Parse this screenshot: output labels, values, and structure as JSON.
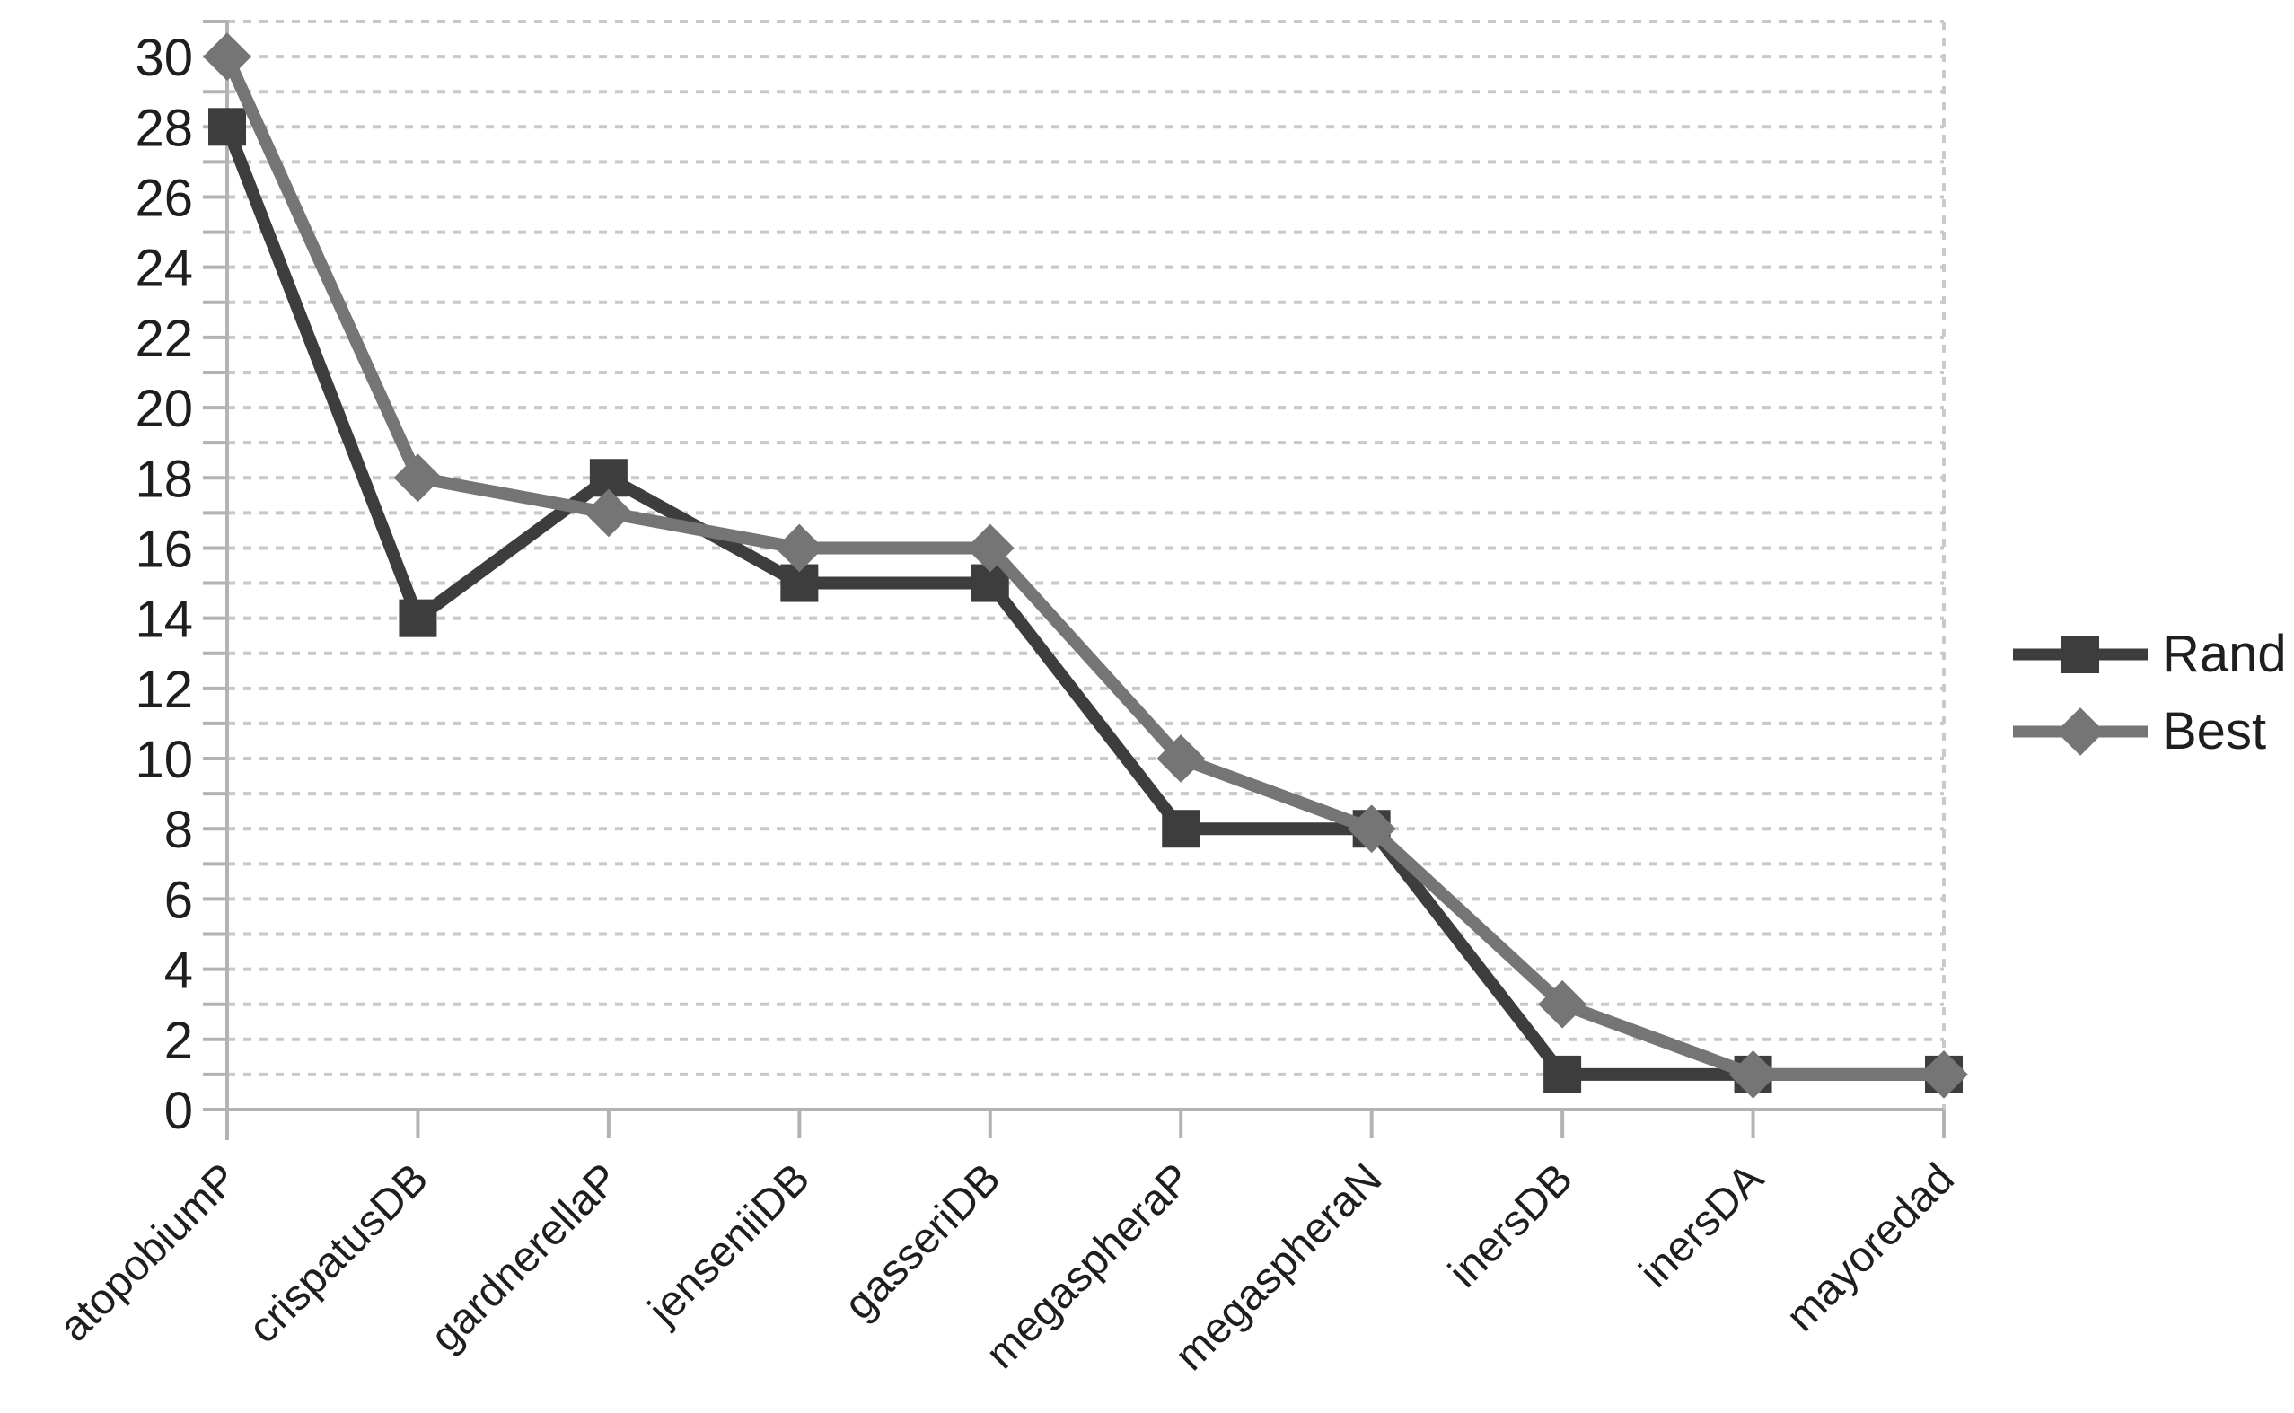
{
  "chart_data": {
    "type": "line",
    "title": "",
    "xlabel": "",
    "ylabel": "",
    "categories": [
      "atopobiumP",
      "crispatusDB",
      "gardnerellaP",
      "jenseniiDB",
      "gasseriDB",
      "megaspheraP",
      "megaspheraN",
      "inersDB",
      "inersDA",
      "mayoredad"
    ],
    "series": [
      {
        "name": "Rand",
        "marker": "square",
        "color": "#3d3d3d",
        "values": [
          28,
          14,
          18,
          15,
          15,
          8,
          8,
          1,
          1,
          1
        ]
      },
      {
        "name": "Best",
        "marker": "diamond",
        "color": "#757575",
        "values": [
          30,
          18,
          17,
          16,
          16,
          10,
          8,
          3,
          1,
          1
        ]
      }
    ],
    "ylim": [
      0,
      31
    ],
    "y_label_ticks": [
      0,
      2,
      4,
      6,
      8,
      10,
      12,
      14,
      16,
      18,
      20,
      22,
      24,
      26,
      28,
      30
    ],
    "y_grid_step": 1,
    "grid": "on",
    "legend_position": "right-middle",
    "colors": {
      "grid": "#c9c9c9",
      "axis": "#b3b3b3",
      "text": "#1e1e1e",
      "background": "#ffffff"
    }
  }
}
